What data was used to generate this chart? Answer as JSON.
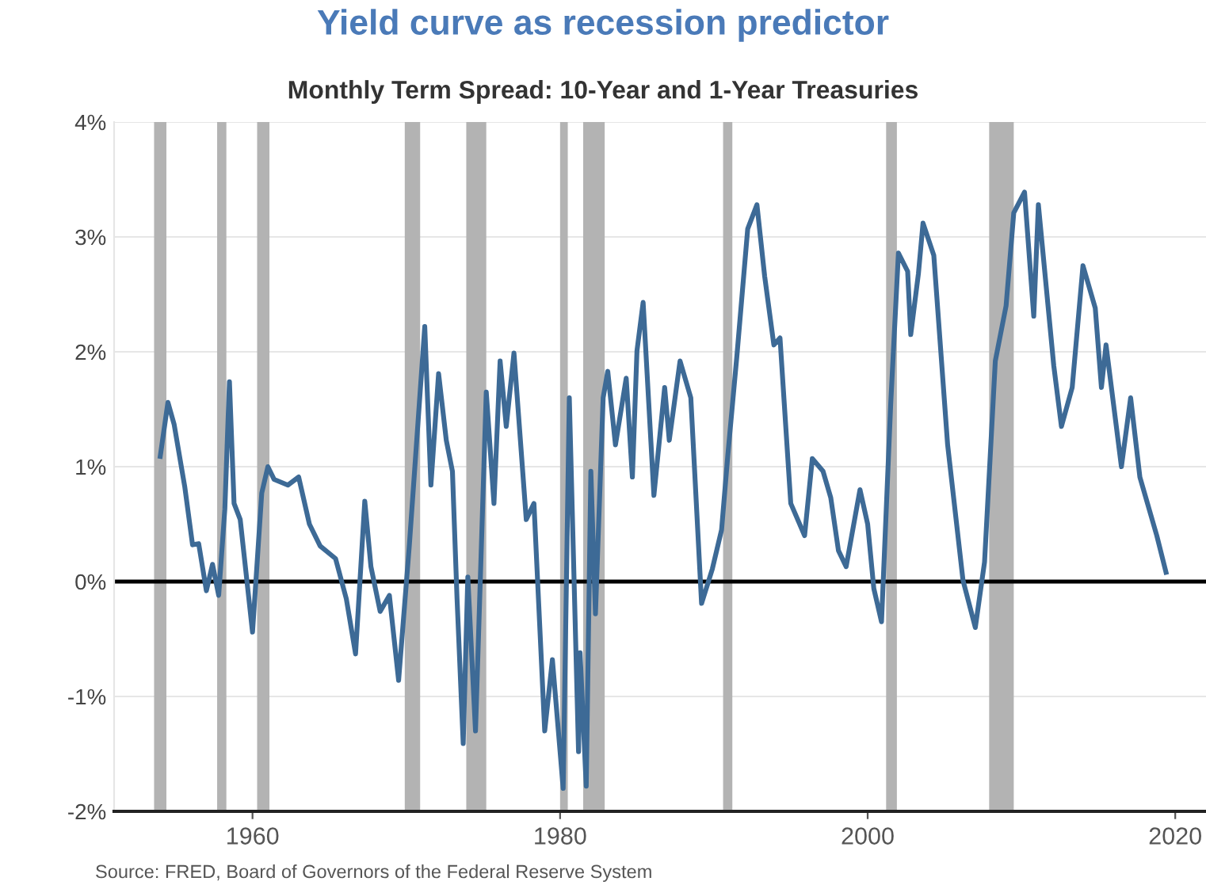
{
  "chart_data": {
    "type": "line",
    "title": "Yield curve as recession predictor",
    "subtitle": "Monthly Term Spread: 10-Year and 1-Year Treasuries",
    "annotations": [
      "Source: FRED, Board of Governors of the Federal Reserve System"
    ],
    "x": [
      1954.0,
      1954.5,
      1954.9,
      1955.6,
      1956.1,
      1956.5,
      1957.0,
      1957.4,
      1957.8,
      1958.2,
      1958.5,
      1958.8,
      1959.2,
      1960.0,
      1960.6,
      1961.0,
      1961.4,
      1962.3,
      1963.0,
      1963.7,
      1964.4,
      1965.4,
      1966.1,
      1966.7,
      1967.3,
      1967.7,
      1968.3,
      1968.9,
      1969.5,
      1970.2,
      1971.2,
      1971.6,
      1972.1,
      1972.6,
      1973.0,
      1973.3,
      1973.7,
      1974.0,
      1974.5,
      1975.2,
      1975.7,
      1976.1,
      1976.5,
      1977.0,
      1977.8,
      1978.3,
      1979.0,
      1979.5,
      1980.2,
      1980.6,
      1981.2,
      1981.3,
      1981.7,
      1982.0,
      1982.3,
      1982.8,
      1983.1,
      1983.6,
      1984.3,
      1984.7,
      1985.0,
      1985.4,
      1986.1,
      1986.8,
      1987.1,
      1987.8,
      1988.5,
      1989.2,
      1989.9,
      1990.5,
      1990.9,
      1991.5,
      1992.2,
      1992.8,
      1993.3,
      1993.9,
      1994.3,
      1995.0,
      1995.9,
      1996.4,
      1997.1,
      1997.6,
      1998.1,
      1998.6,
      1999.5,
      2000.0,
      2000.4,
      2000.9,
      2001.5,
      2002.0,
      2002.6,
      2002.8,
      2003.3,
      2003.6,
      2004.3,
      2005.2,
      2006.2,
      2007.0,
      2007.6,
      2008.3,
      2009.0,
      2009.5,
      2010.2,
      2010.8,
      2011.1,
      2012.1,
      2012.6,
      2013.3,
      2014.0,
      2014.8,
      2015.2,
      2015.5,
      2016.5,
      2017.1,
      2017.7,
      2018.8,
      2019.4
    ],
    "series": [
      {
        "color": "#3d6a96",
        "values": [
          1.09,
          1.56,
          1.37,
          0.82,
          0.32,
          0.33,
          -0.08,
          0.15,
          -0.12,
          0.63,
          1.74,
          0.68,
          0.54,
          -0.44,
          0.77,
          1.0,
          0.89,
          0.84,
          0.91,
          0.5,
          0.31,
          0.2,
          -0.15,
          -0.63,
          0.7,
          0.13,
          -0.26,
          -0.12,
          -0.86,
          0.32,
          2.22,
          0.84,
          1.81,
          1.23,
          0.96,
          -0.15,
          -1.41,
          0.04,
          -1.3,
          1.65,
          0.68,
          1.92,
          1.35,
          1.99,
          0.54,
          0.68,
          -1.3,
          -0.68,
          -1.8,
          1.6,
          -1.48,
          -0.62,
          -1.78,
          0.96,
          -0.28,
          1.6,
          1.83,
          1.19,
          1.77,
          0.91,
          2.01,
          2.43,
          0.75,
          1.69,
          1.23,
          1.92,
          1.6,
          -0.19,
          0.11,
          0.45,
          1.09,
          1.97,
          3.07,
          3.28,
          2.66,
          2.06,
          2.12,
          0.68,
          0.4,
          1.07,
          0.96,
          0.73,
          0.27,
          0.13,
          0.8,
          0.5,
          -0.06,
          -0.35,
          1.55,
          2.86,
          2.7,
          2.15,
          2.68,
          3.12,
          2.84,
          1.19,
          0.01,
          -0.4,
          0.17,
          1.92,
          2.4,
          3.21,
          3.39,
          2.31,
          3.28,
          1.88,
          1.35,
          1.69,
          2.75,
          2.38,
          1.69,
          2.06,
          1.0,
          1.6,
          0.91,
          0.4,
          0.08
        ]
      }
    ],
    "xlim": [
      1951,
      2022
    ],
    "xticks": [
      1960,
      1980,
      2000,
      2020
    ],
    "ylim": [
      -2,
      4
    ],
    "yticks": [
      {
        "value": -2,
        "label": "-2%"
      },
      {
        "value": -1,
        "label": "-1%"
      },
      {
        "value": 0,
        "label": "0%"
      },
      {
        "value": 1,
        "label": "1%"
      },
      {
        "value": 2,
        "label": "2%"
      },
      {
        "value": 3,
        "label": "3%"
      },
      {
        "value": 4,
        "label": "4%"
      }
    ],
    "grid": "y",
    "marker": "none",
    "line_style": "solid",
    "ref_lines": [
      {
        "axis": "y",
        "value": 0,
        "color": "#000000"
      }
    ],
    "bands": [
      {
        "axis": "x",
        "from": 1953.6,
        "to": 1954.4,
        "color": "#b3b3b3"
      },
      {
        "axis": "x",
        "from": 1957.7,
        "to": 1958.3,
        "color": "#b3b3b3"
      },
      {
        "axis": "x",
        "from": 1960.3,
        "to": 1961.1,
        "color": "#b3b3b3"
      },
      {
        "axis": "x",
        "from": 1969.9,
        "to": 1970.9,
        "color": "#b3b3b3"
      },
      {
        "axis": "x",
        "from": 1973.9,
        "to": 1975.2,
        "color": "#b3b3b3"
      },
      {
        "axis": "x",
        "from": 1980.0,
        "to": 1980.5,
        "color": "#b3b3b3"
      },
      {
        "axis": "x",
        "from": 1981.5,
        "to": 1982.9,
        "color": "#b3b3b3"
      },
      {
        "axis": "x",
        "from": 1990.6,
        "to": 1991.2,
        "color": "#b3b3b3"
      },
      {
        "axis": "x",
        "from": 2001.2,
        "to": 2001.9,
        "color": "#b3b3b3"
      },
      {
        "axis": "x",
        "from": 2007.9,
        "to": 2009.5,
        "color": "#b3b3b3"
      }
    ]
  }
}
